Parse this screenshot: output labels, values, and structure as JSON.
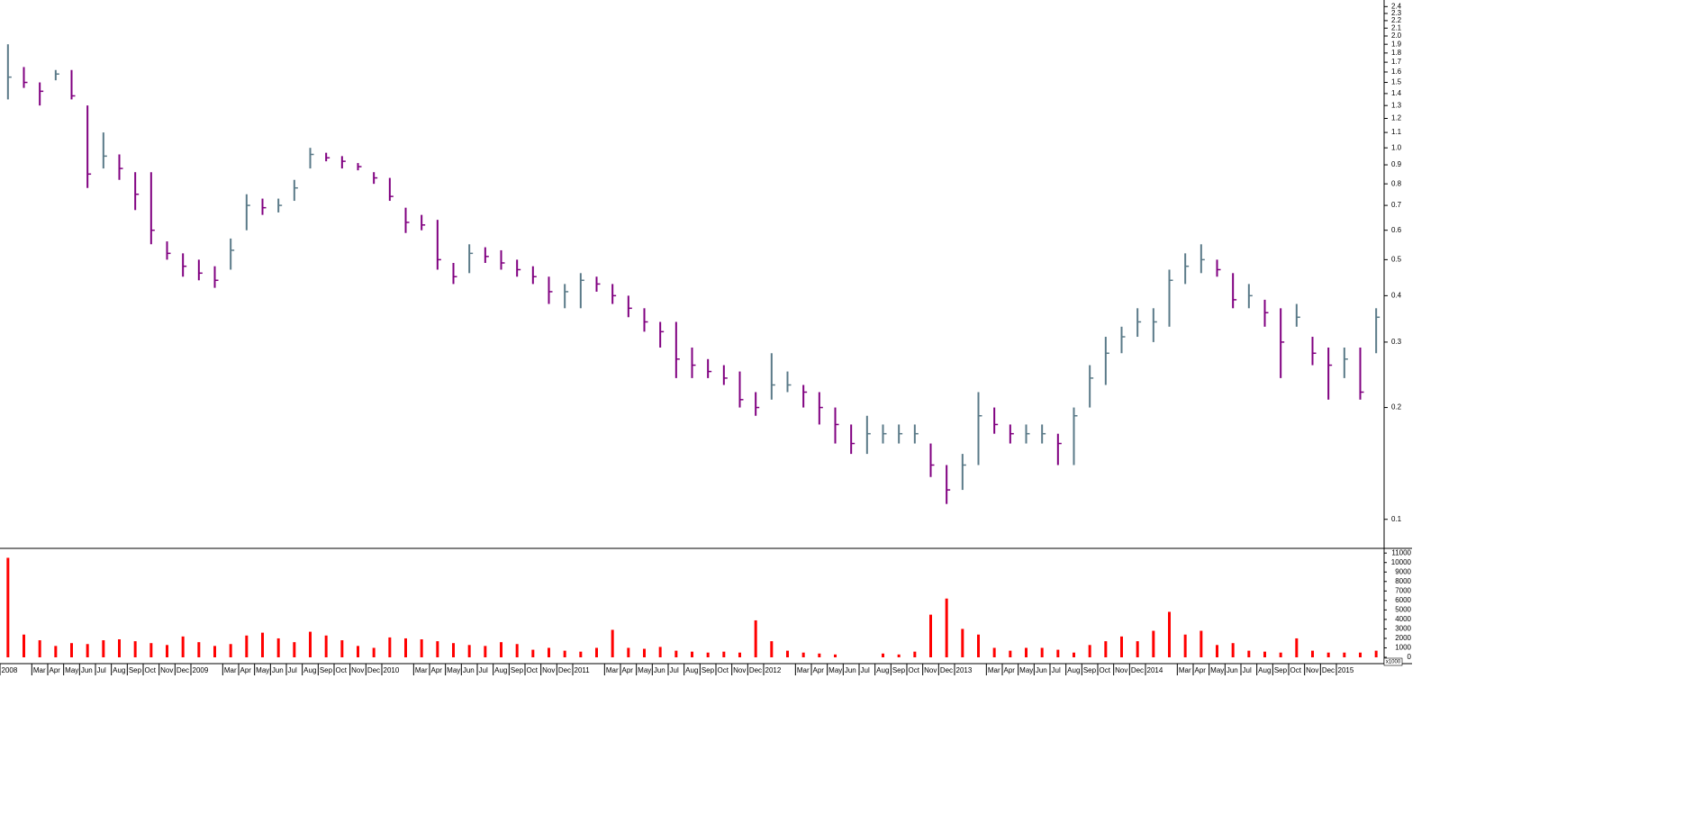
{
  "chart_data": [
    {
      "type": "ohlc",
      "log_scale": true,
      "up_color": "#5a7a88",
      "down_color": "#800080",
      "ylim": [
        0.084,
        2.5
      ],
      "yticks": [
        0.1,
        0.2,
        0.3,
        0.4,
        0.5,
        0.6,
        0.7,
        0.8,
        0.9,
        {
          "value": 1.0,
          "label": "1.0"
        },
        1.1,
        1.2,
        1.3,
        1.4,
        1.5,
        1.6,
        1.7,
        1.8,
        1.9,
        {
          "value": 2.0,
          "label": "2.0"
        },
        2.1,
        2.2,
        2.3,
        2.4
      ],
      "high": [
        1.9,
        1.65,
        1.5,
        1.62,
        1.62,
        1.3,
        1.1,
        0.96,
        0.86,
        0.86,
        0.56,
        0.52,
        0.5,
        0.48,
        0.57,
        0.75,
        0.73,
        0.73,
        0.82,
        1.0,
        0.97,
        0.95,
        0.91,
        0.86,
        0.83,
        0.69,
        0.66,
        0.64,
        0.49,
        0.55,
        0.54,
        0.53,
        0.5,
        0.48,
        0.45,
        0.43,
        0.46,
        0.45,
        0.43,
        0.4,
        0.37,
        0.34,
        0.34,
        0.29,
        0.27,
        0.26,
        0.25,
        0.22,
        0.28,
        0.25,
        0.23,
        0.22,
        0.2,
        0.18,
        0.19,
        0.18,
        0.18,
        0.18,
        0.16,
        0.14,
        0.15,
        0.22,
        0.2,
        0.18,
        0.18,
        0.18,
        0.17,
        0.2,
        0.26,
        0.31,
        0.33,
        0.37,
        0.37,
        0.47,
        0.52,
        0.55,
        0.5,
        0.46,
        0.43,
        0.39,
        0.37,
        0.38,
        0.31,
        0.29,
        0.29,
        0.29,
        0.37
      ],
      "low": [
        1.35,
        1.45,
        1.3,
        1.52,
        1.35,
        0.78,
        0.88,
        0.82,
        0.68,
        0.55,
        0.5,
        0.45,
        0.44,
        0.42,
        0.47,
        0.6,
        0.66,
        0.67,
        0.72,
        0.88,
        0.92,
        0.88,
        0.87,
        0.8,
        0.72,
        0.59,
        0.6,
        0.47,
        0.43,
        0.46,
        0.49,
        0.47,
        0.45,
        0.43,
        0.38,
        0.37,
        0.37,
        0.41,
        0.38,
        0.35,
        0.32,
        0.29,
        0.24,
        0.24,
        0.24,
        0.23,
        0.2,
        0.19,
        0.21,
        0.22,
        0.2,
        0.18,
        0.16,
        0.15,
        0.15,
        0.16,
        0.16,
        0.16,
        0.13,
        0.11,
        0.12,
        0.14,
        0.17,
        0.16,
        0.16,
        0.16,
        0.14,
        0.14,
        0.2,
        0.23,
        0.28,
        0.31,
        0.3,
        0.33,
        0.43,
        0.46,
        0.45,
        0.37,
        0.37,
        0.33,
        0.24,
        0.33,
        0.26,
        0.21,
        0.24,
        0.21,
        0.28
      ],
      "close": [
        1.55,
        1.5,
        1.42,
        1.58,
        1.38,
        0.85,
        0.95,
        0.88,
        0.75,
        0.6,
        0.52,
        0.48,
        0.46,
        0.44,
        0.53,
        0.7,
        0.69,
        0.7,
        0.78,
        0.96,
        0.94,
        0.92,
        0.89,
        0.83,
        0.74,
        0.63,
        0.62,
        0.5,
        0.45,
        0.52,
        0.51,
        0.49,
        0.47,
        0.45,
        0.41,
        0.41,
        0.44,
        0.43,
        0.4,
        0.37,
        0.34,
        0.32,
        0.27,
        0.26,
        0.25,
        0.24,
        0.21,
        0.2,
        0.23,
        0.23,
        0.22,
        0.2,
        0.18,
        0.16,
        0.17,
        0.17,
        0.17,
        0.17,
        0.14,
        0.12,
        0.14,
        0.19,
        0.18,
        0.17,
        0.17,
        0.17,
        0.16,
        0.19,
        0.24,
        0.28,
        0.31,
        0.34,
        0.34,
        0.44,
        0.48,
        0.5,
        0.47,
        0.39,
        0.4,
        0.36,
        0.3,
        0.35,
        0.28,
        0.26,
        0.27,
        0.22,
        0.35
      ]
    },
    {
      "type": "bar",
      "color": "#ff0000",
      "unit_label": "x1000",
      "ylim": [
        0,
        11400
      ],
      "yticks": [
        0,
        1000,
        2000,
        3000,
        4000,
        5000,
        6000,
        7000,
        8000,
        9000,
        10000,
        11000
      ],
      "values": [
        10500,
        2400,
        1800,
        1200,
        1500,
        1400,
        1800,
        1900,
        1700,
        1500,
        1300,
        2200,
        1600,
        1200,
        1400,
        2300,
        2600,
        2000,
        1600,
        2700,
        2300,
        1800,
        1200,
        1000,
        2100,
        2000,
        1900,
        1700,
        1500,
        1300,
        1200,
        1600,
        1400,
        800,
        1000,
        700,
        600,
        1000,
        2900,
        1000,
        900,
        1100,
        700,
        600,
        500,
        600,
        500,
        3900,
        1700,
        700,
        500,
        400,
        300,
        0,
        0,
        400,
        300,
        600,
        4500,
        6200,
        3000,
        2400,
        1000,
        700,
        1000,
        1000,
        800,
        500,
        1300,
        1700,
        2200,
        1700,
        2800,
        4800,
        2400,
        2800,
        1300,
        1500,
        700,
        600,
        500,
        2000,
        700,
        500,
        500,
        500,
        700
      ],
      "xlim": [
        0,
        87
      ],
      "xticks": [
        {
          "value": 0,
          "label": "2008"
        },
        {
          "value": 2,
          "label": "Mar"
        },
        {
          "value": 3,
          "label": "Apr"
        },
        {
          "value": 4,
          "label": "May"
        },
        {
          "value": 5,
          "label": "Jun"
        },
        {
          "value": 6,
          "label": "Jul"
        },
        {
          "value": 7,
          "label": "Aug"
        },
        {
          "value": 8,
          "label": "Sep"
        },
        {
          "value": 9,
          "label": "Oct"
        },
        {
          "value": 10,
          "label": "Nov"
        },
        {
          "value": 11,
          "label": "Dec"
        },
        {
          "value": 12,
          "label": "2009"
        },
        {
          "value": 14,
          "label": "Mar"
        },
        {
          "value": 15,
          "label": "Apr"
        },
        {
          "value": 16,
          "label": "May"
        },
        {
          "value": 17,
          "label": "Jun"
        },
        {
          "value": 18,
          "label": "Jul"
        },
        {
          "value": 19,
          "label": "Aug"
        },
        {
          "value": 20,
          "label": "Sep"
        },
        {
          "value": 21,
          "label": "Oct"
        },
        {
          "value": 22,
          "label": "Nov"
        },
        {
          "value": 23,
          "label": "Dec"
        },
        {
          "value": 24,
          "label": "2010"
        },
        {
          "value": 26,
          "label": "Mar"
        },
        {
          "value": 27,
          "label": "Apr"
        },
        {
          "value": 28,
          "label": "May"
        },
        {
          "value": 29,
          "label": "Jun"
        },
        {
          "value": 30,
          "label": "Jul"
        },
        {
          "value": 31,
          "label": "Aug"
        },
        {
          "value": 32,
          "label": "Sep"
        },
        {
          "value": 33,
          "label": "Oct"
        },
        {
          "value": 34,
          "label": "Nov"
        },
        {
          "value": 35,
          "label": "Dec"
        },
        {
          "value": 36,
          "label": "2011"
        },
        {
          "value": 38,
          "label": "Mar"
        },
        {
          "value": 39,
          "label": "Apr"
        },
        {
          "value": 40,
          "label": "May"
        },
        {
          "value": 41,
          "label": "Jun"
        },
        {
          "value": 42,
          "label": "Jul"
        },
        {
          "value": 43,
          "label": "Aug"
        },
        {
          "value": 44,
          "label": "Sep"
        },
        {
          "value": 45,
          "label": "Oct"
        },
        {
          "value": 46,
          "label": "Nov"
        },
        {
          "value": 47,
          "label": "Dec"
        },
        {
          "value": 48,
          "label": "2012"
        },
        {
          "value": 50,
          "label": "Mar"
        },
        {
          "value": 51,
          "label": "Apr"
        },
        {
          "value": 52,
          "label": "May"
        },
        {
          "value": 53,
          "label": "Jun"
        },
        {
          "value": 54,
          "label": "Jul"
        },
        {
          "value": 55,
          "label": "Aug"
        },
        {
          "value": 56,
          "label": "Sep"
        },
        {
          "value": 57,
          "label": "Oct"
        },
        {
          "value": 58,
          "label": "Nov"
        },
        {
          "value": 59,
          "label": "Dec"
        },
        {
          "value": 60,
          "label": "2013"
        },
        {
          "value": 62,
          "label": "Mar"
        },
        {
          "value": 63,
          "label": "Apr"
        },
        {
          "value": 64,
          "label": "May"
        },
        {
          "value": 65,
          "label": "Jun"
        },
        {
          "value": 66,
          "label": "Jul"
        },
        {
          "value": 67,
          "label": "Aug"
        },
        {
          "value": 68,
          "label": "Sep"
        },
        {
          "value": 69,
          "label": "Oct"
        },
        {
          "value": 70,
          "label": "Nov"
        },
        {
          "value": 71,
          "label": "Dec"
        },
        {
          "value": 72,
          "label": "2014"
        },
        {
          "value": 74,
          "label": "Mar"
        },
        {
          "value": 75,
          "label": "Apr"
        },
        {
          "value": 76,
          "label": "May"
        },
        {
          "value": 77,
          "label": "Jun"
        },
        {
          "value": 78,
          "label": "Jul"
        },
        {
          "value": 79,
          "label": "Aug"
        },
        {
          "value": 80,
          "label": "Sep"
        },
        {
          "value": 81,
          "label": "Oct"
        },
        {
          "value": 82,
          "label": "Nov"
        },
        {
          "value": 83,
          "label": "Dec"
        },
        {
          "value": 84,
          "label": "2015"
        }
      ]
    }
  ]
}
